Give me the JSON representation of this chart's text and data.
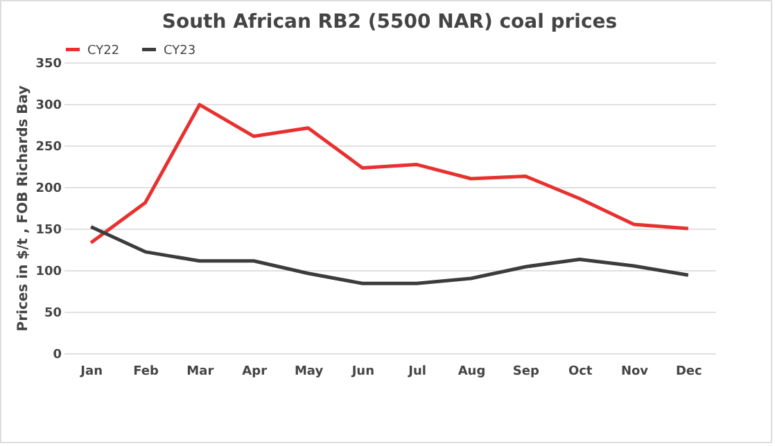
{
  "chart_data": {
    "type": "line",
    "title": "South African RB2 (5500 NAR) coal prices",
    "ylabel": "Prices in $/t , FOB Richards Bay",
    "categories": [
      "Jan",
      "Feb",
      "Mar",
      "Apr",
      "May",
      "Jun",
      "Jul",
      "Aug",
      "Sep",
      "Oct",
      "Nov",
      "Dec"
    ],
    "series": [
      {
        "name": "CY22",
        "color": "#e8312f",
        "values": [
          133,
          181,
          299,
          261,
          271,
          223,
          227,
          210,
          213,
          186,
          155,
          150
        ]
      },
      {
        "name": "CY23",
        "color": "#3c3c3c",
        "values": [
          152,
          122,
          111,
          111,
          96,
          84,
          84,
          90,
          104,
          113,
          105,
          94
        ]
      }
    ],
    "ylim": [
      0,
      350
    ],
    "yticks": [
      0,
      50,
      100,
      150,
      200,
      250,
      300,
      350
    ],
    "grid": "y",
    "legend": "top",
    "marker": "none",
    "line_style": "solid"
  }
}
